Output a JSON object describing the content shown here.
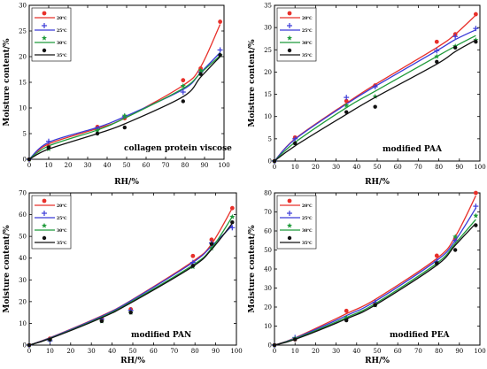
{
  "chart_data": [
    {
      "type": "scatter",
      "title": "",
      "panel_label": "collagen protein viscose",
      "xlabel": "RH/%",
      "ylabel": "Moisture content/%",
      "xlim": [
        0,
        100
      ],
      "ylim": [
        0,
        30
      ],
      "x_ticks": [
        0,
        10,
        20,
        30,
        40,
        50,
        60,
        70,
        80,
        90,
        100
      ],
      "y_ticks": [
        0,
        5,
        10,
        15,
        20,
        25,
        30
      ],
      "legend_position": "top-left",
      "series": [
        {
          "name": "20℃",
          "color": "#e8302a",
          "marker": "circle",
          "x": [
            0,
            10,
            35,
            49,
            79,
            88,
            98
          ],
          "y": [
            0,
            2.5,
            6.3,
            8.0,
            15.4,
            17.7,
            26.8
          ],
          "fit": [
            0,
            3.0,
            6.0,
            8.0,
            14.4,
            18.0,
            26.3
          ]
        },
        {
          "name": "25℃",
          "color": "#3a3ad8",
          "marker": "plus",
          "x": [
            0,
            10,
            35,
            49,
            79,
            88,
            98
          ],
          "y": [
            0,
            3.5,
            6.0,
            8.4,
            13.1,
            17.0,
            21.3
          ],
          "fit": [
            0,
            3.3,
            6.2,
            8.3,
            13.6,
            16.9,
            20.8
          ]
        },
        {
          "name": "30℃",
          "color": "#1f9a3a",
          "marker": "star",
          "x": [
            0,
            10,
            35,
            49,
            79,
            88,
            98
          ],
          "y": [
            0,
            2.0,
            5.6,
            8.5,
            14.3,
            17.3,
            20.3
          ],
          "fit": [
            0,
            2.6,
            5.7,
            8.0,
            13.8,
            16.8,
            20.2
          ]
        },
        {
          "name": "35℃",
          "color": "#111111",
          "marker": "dot",
          "x": [
            0,
            10,
            35,
            49,
            79,
            88,
            98
          ],
          "y": [
            0,
            2.3,
            5.0,
            6.2,
            11.3,
            16.6,
            20.3
          ],
          "fit": [
            0,
            2.0,
            5.0,
            6.9,
            12.2,
            16.0,
            20.0
          ]
        }
      ]
    },
    {
      "type": "scatter",
      "title": "",
      "panel_label": "modified PAA",
      "xlabel": "RH/%",
      "ylabel": "Moisture content/%",
      "xlim": [
        0,
        100
      ],
      "ylim": [
        0,
        35
      ],
      "x_ticks": [
        0,
        10,
        20,
        30,
        40,
        50,
        60,
        70,
        80,
        90,
        100
      ],
      "y_ticks": [
        0,
        5,
        10,
        15,
        20,
        25,
        30,
        35
      ],
      "legend_position": "top-left",
      "series": [
        {
          "name": "20℃",
          "color": "#e8302a",
          "marker": "circle",
          "x": [
            0,
            10,
            35,
            49,
            79,
            88,
            98
          ],
          "y": [
            0,
            5.3,
            13.5,
            17.0,
            26.8,
            28.5,
            33.0
          ],
          "fit": [
            0,
            5.0,
            13.0,
            17.2,
            25.5,
            28.5,
            32.8
          ]
        },
        {
          "name": "25℃",
          "color": "#3a3ad8",
          "marker": "plus",
          "x": [
            0,
            10,
            35,
            49,
            79,
            88,
            98
          ],
          "y": [
            0,
            5.0,
            14.3,
            16.7,
            24.8,
            28.0,
            29.8
          ],
          "fit": [
            0,
            4.9,
            12.8,
            16.8,
            24.8,
            27.3,
            29.5
          ]
        },
        {
          "name": "30℃",
          "color": "#1f9a3a",
          "marker": "star",
          "x": [
            0,
            10,
            35,
            49,
            79,
            88,
            98
          ],
          "y": [
            0,
            4.0,
            12.5,
            14.5,
            23.5,
            25.8,
            27.2
          ],
          "fit": [
            0,
            4.2,
            12.0,
            15.7,
            23.5,
            25.8,
            28.2
          ]
        },
        {
          "name": "35℃",
          "color": "#111111",
          "marker": "dot",
          "x": [
            0,
            10,
            35,
            49,
            79,
            88,
            98
          ],
          "y": [
            0,
            4.0,
            11.0,
            12.2,
            22.3,
            25.5,
            26.8
          ],
          "fit": [
            0,
            3.4,
            10.5,
            14.3,
            21.8,
            24.6,
            27.2
          ]
        }
      ]
    },
    {
      "type": "scatter",
      "title": "",
      "panel_label": "modified PAN",
      "xlabel": "RH/%",
      "ylabel": "Moisture content/%",
      "xlim": [
        0,
        100
      ],
      "ylim": [
        0,
        70
      ],
      "x_ticks": [
        0,
        10,
        20,
        30,
        40,
        50,
        60,
        70,
        80,
        90,
        100
      ],
      "y_ticks": [
        0,
        10,
        20,
        30,
        40,
        50,
        60,
        70
      ],
      "legend_position": "top-left",
      "series": [
        {
          "name": "20℃",
          "color": "#e8302a",
          "marker": "circle",
          "x": [
            0,
            10,
            35,
            49,
            79,
            88,
            98
          ],
          "y": [
            0,
            3.0,
            12.0,
            16.5,
            41.0,
            48.5,
            63.0
          ],
          "fit": [
            0,
            3.4,
            13.5,
            20.5,
            38.5,
            46.5,
            63.0
          ]
        },
        {
          "name": "25℃",
          "color": "#3a3ad8",
          "marker": "plus",
          "x": [
            0,
            10,
            35,
            49,
            79,
            88,
            98
          ],
          "y": [
            0,
            2.0,
            12.0,
            16.0,
            38.0,
            47.0,
            54.0
          ],
          "fit": [
            0,
            3.3,
            13.3,
            20.3,
            38.0,
            45.5,
            55.0
          ]
        },
        {
          "name": "30℃",
          "color": "#1f9a3a",
          "marker": "star",
          "x": [
            0,
            10,
            35,
            49,
            79,
            88,
            98
          ],
          "y": [
            0,
            2.5,
            11.0,
            15.0,
            36.0,
            44.5,
            59.0
          ],
          "fit": [
            0,
            3.1,
            12.9,
            19.8,
            36.8,
            44.5,
            59.0
          ]
        },
        {
          "name": "35℃",
          "color": "#111111",
          "marker": "dot",
          "x": [
            0,
            10,
            35,
            49,
            79,
            88,
            98
          ],
          "y": [
            0,
            2.5,
            11.0,
            15.0,
            36.5,
            46.5,
            56.5
          ],
          "fit": [
            0,
            3.0,
            12.6,
            19.4,
            36.2,
            44.0,
            56.0
          ]
        }
      ]
    },
    {
      "type": "scatter",
      "title": "",
      "panel_label": "modified PEA",
      "xlabel": "RH/%",
      "ylabel": "Moisture content/%",
      "xlim": [
        0,
        100
      ],
      "ylim": [
        0,
        80
      ],
      "x_ticks": [
        0,
        10,
        20,
        30,
        40,
        50,
        60,
        70,
        80,
        90,
        100
      ],
      "y_ticks": [
        0,
        10,
        20,
        30,
        40,
        50,
        60,
        70,
        80
      ],
      "legend_position": "top-left",
      "series": [
        {
          "name": "20℃",
          "color": "#e8302a",
          "marker": "circle",
          "x": [
            0,
            10,
            35,
            49,
            79,
            88,
            98
          ],
          "y": [
            0,
            3.0,
            18.0,
            22.0,
            47.0,
            56.0,
            80.0
          ],
          "fit": [
            0,
            3.8,
            16.5,
            24.0,
            45.5,
            57.0,
            78.5
          ]
        },
        {
          "name": "25℃",
          "color": "#3a3ad8",
          "marker": "plus",
          "x": [
            0,
            10,
            35,
            49,
            79,
            88,
            98
          ],
          "y": [
            0,
            4.0,
            14.0,
            22.5,
            44.0,
            55.0,
            73.0
          ],
          "fit": [
            0,
            3.6,
            15.5,
            23.0,
            44.5,
            55.0,
            72.0
          ]
        },
        {
          "name": "30℃",
          "color": "#1f9a3a",
          "marker": "star",
          "x": [
            0,
            10,
            35,
            49,
            79,
            88,
            98
          ],
          "y": [
            0,
            3.5,
            14.5,
            21.0,
            43.0,
            57.0,
            68.0
          ],
          "fit": [
            0,
            3.3,
            14.5,
            21.8,
            43.0,
            53.5,
            66.0
          ]
        },
        {
          "name": "35℃",
          "color": "#111111",
          "marker": "dot",
          "x": [
            0,
            10,
            35,
            49,
            79,
            88,
            98
          ],
          "y": [
            0,
            3.0,
            13.0,
            21.0,
            43.0,
            50.0,
            63.0
          ],
          "fit": [
            0,
            3.0,
            13.8,
            21.0,
            42.0,
            52.5,
            64.0
          ]
        }
      ]
    }
  ]
}
